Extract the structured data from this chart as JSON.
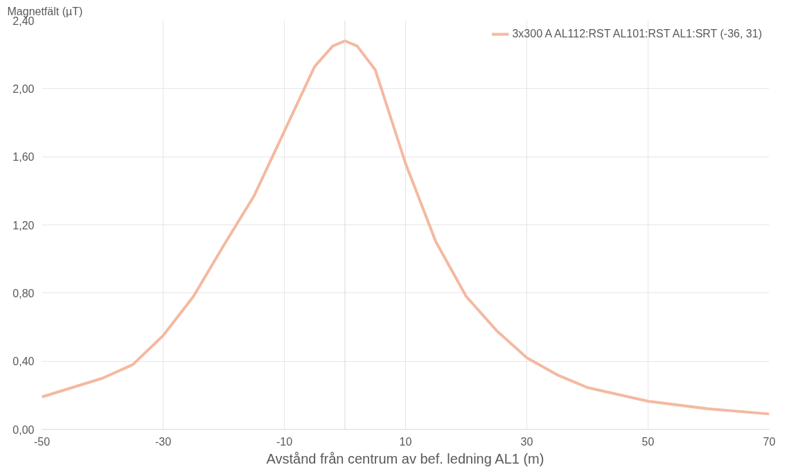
{
  "chart_data": {
    "type": "line",
    "ylabel": "Magnetfält (µT)",
    "xlabel": "Avstånd från centrum av bef. ledning AL1 (m)",
    "x": [
      -50,
      -40,
      -35,
      -30,
      -25,
      -20,
      -15,
      -10,
      -5,
      -2,
      0,
      2,
      5,
      10,
      15,
      20,
      25,
      30,
      35,
      40,
      50,
      60,
      70
    ],
    "series": [
      {
        "name": "3x300 A AL112:RST AL101:RST AL1:SRT (-36, 31)",
        "color": "#f4b9a0",
        "values": [
          0.19,
          0.3,
          0.38,
          0.55,
          0.78,
          1.08,
          1.37,
          1.75,
          2.13,
          2.25,
          2.28,
          2.25,
          2.11,
          1.56,
          1.1,
          0.78,
          0.58,
          0.42,
          0.32,
          0.245,
          0.165,
          0.12,
          0.09
        ]
      }
    ],
    "xlim": [
      -50,
      70
    ],
    "xticks": [
      -50,
      -30,
      -10,
      10,
      30,
      50,
      70
    ],
    "ylim": [
      0,
      2.4
    ],
    "yticks": [
      {
        "value": 0,
        "label": "0,00"
      },
      {
        "value": 0.4,
        "label": "0,40"
      },
      {
        "value": 0.8,
        "label": "0,80"
      },
      {
        "value": 1.2,
        "label": "1,20"
      },
      {
        "value": 1.6,
        "label": "1,60"
      },
      {
        "value": 2.0,
        "label": "2,00"
      },
      {
        "value": 2.4,
        "label": "2,40"
      }
    ],
    "ref_lines": [
      {
        "axis": "x",
        "value": 0,
        "label": null,
        "color": "#d9d9d9"
      }
    ],
    "grid": true,
    "legend": "top right",
    "marker": "none",
    "line_style": "solid"
  }
}
